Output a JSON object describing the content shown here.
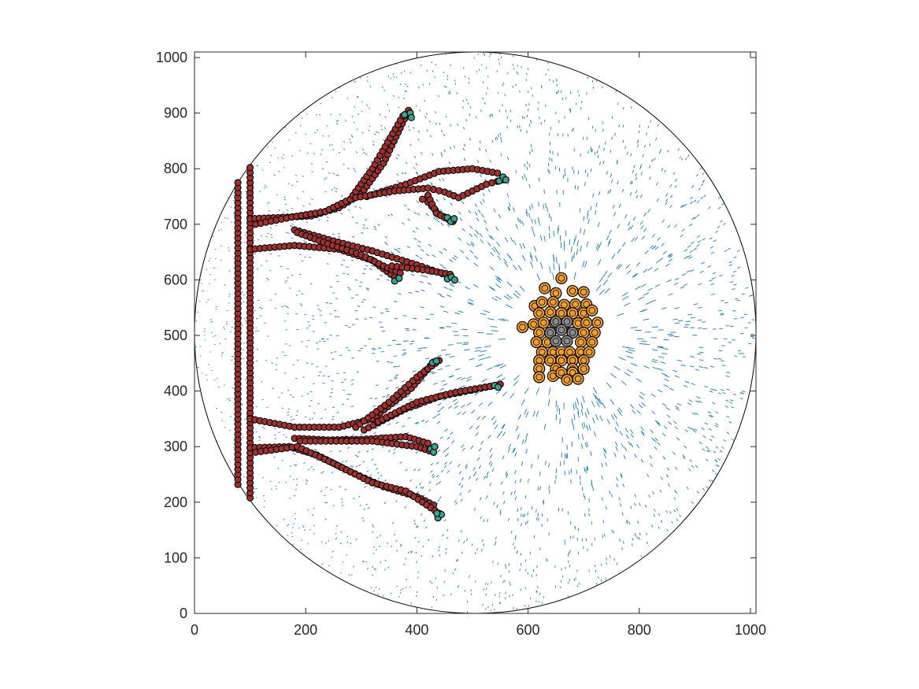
{
  "chart_data": {
    "type": "scatter",
    "title": "",
    "xlabel": "",
    "ylabel": "",
    "xlim": [
      0,
      1010
    ],
    "ylim": [
      0,
      1010
    ],
    "grid": false,
    "legend": "none",
    "x_ticks": [
      "0",
      "200",
      "400",
      "600",
      "800",
      "1000"
    ],
    "y_ticks": [
      "0",
      "100",
      "200",
      "300",
      "400",
      "500",
      "600",
      "700",
      "800",
      "900",
      "1000"
    ],
    "boundary_circle": {
      "center": [
        505,
        505
      ],
      "radius": 505
    },
    "colors": {
      "vessel_cell": "#a0322d",
      "tip_cell": "#3aa58f",
      "tumor_cell": "#f0a030",
      "necrotic_cell": "#8c8c8c",
      "field": "#1f77b4"
    },
    "series": [
      {
        "role": "vessel",
        "polylines": [
          [
            [
              78,
              232
            ],
            [
              78,
              775
            ]
          ],
          [
            [
              100,
              208
            ],
            [
              100,
              802
            ]
          ],
          [
            [
              100,
              710
            ],
            [
              150,
              712
            ],
            [
              210,
              715
            ],
            [
              260,
              730
            ],
            [
              300,
              755
            ],
            [
              340,
              810
            ],
            [
              385,
              905
            ]
          ],
          [
            [
              110,
              700
            ],
            [
              175,
              713
            ],
            [
              235,
              723
            ],
            [
              280,
              745
            ],
            [
              320,
              800
            ],
            [
              375,
              895
            ]
          ],
          [
            [
              310,
              750
            ],
            [
              380,
              772
            ],
            [
              440,
              795
            ],
            [
              500,
              800
            ],
            [
              545,
              792
            ],
            [
              555,
              784
            ]
          ],
          [
            [
              290,
              748
            ],
            [
              360,
              760
            ],
            [
              420,
              765
            ],
            [
              450,
              758
            ],
            [
              475,
              748
            ],
            [
              525,
              772
            ],
            [
              555,
              780
            ]
          ],
          [
            [
              410,
              745
            ],
            [
              420,
              740
            ],
            [
              440,
              718
            ],
            [
              465,
              705
            ]
          ],
          [
            [
              420,
              752
            ],
            [
              435,
              720
            ],
            [
              458,
              708
            ]
          ],
          [
            [
              100,
              655
            ],
            [
              180,
              662
            ],
            [
              260,
              655
            ],
            [
              320,
              635
            ],
            [
              360,
              605
            ]
          ],
          [
            [
              180,
              690
            ],
            [
              250,
              670
            ],
            [
              320,
              652
            ],
            [
              400,
              627
            ],
            [
              455,
              608
            ]
          ],
          [
            [
              185,
              685
            ],
            [
              240,
              665
            ],
            [
              300,
              645
            ],
            [
              340,
              625
            ],
            [
              370,
              612
            ]
          ],
          [
            [
              355,
              625
            ],
            [
              420,
              617
            ],
            [
              460,
              610
            ]
          ],
          [
            [
              100,
              350
            ],
            [
              180,
              335
            ],
            [
              260,
              335
            ],
            [
              320,
              350
            ],
            [
              390,
              405
            ],
            [
              430,
              452
            ]
          ],
          [
            [
              290,
              335
            ],
            [
              350,
              380
            ],
            [
              400,
              425
            ],
            [
              440,
              455
            ]
          ],
          [
            [
              305,
              330
            ],
            [
              380,
              368
            ],
            [
              440,
              390
            ],
            [
              515,
              405
            ],
            [
              550,
              412
            ]
          ],
          [
            [
              330,
              345
            ],
            [
              400,
              380
            ],
            [
              470,
              398
            ],
            [
              540,
              410
            ]
          ],
          [
            [
              180,
              315
            ],
            [
              240,
              312
            ],
            [
              300,
              313
            ],
            [
              380,
              318
            ],
            [
              420,
              306
            ]
          ],
          [
            [
              190,
              310
            ],
            [
              320,
              310
            ],
            [
              400,
              300
            ],
            [
              430,
              290
            ]
          ],
          [
            [
              100,
              298
            ],
            [
              170,
              300
            ],
            [
              220,
              285
            ],
            [
              280,
              255
            ],
            [
              340,
              228
            ],
            [
              400,
              210
            ],
            [
              430,
              195
            ]
          ],
          [
            [
              110,
              290
            ],
            [
              185,
              300
            ],
            [
              250,
              270
            ],
            [
              320,
              235
            ],
            [
              380,
              220
            ],
            [
              440,
              180
            ]
          ]
        ]
      },
      {
        "role": "tip",
        "points": [
          [
            378,
            897
          ],
          [
            388,
            900
          ],
          [
            390,
            892
          ],
          [
            548,
            778
          ],
          [
            555,
            785
          ],
          [
            560,
            780
          ],
          [
            455,
            712
          ],
          [
            461,
            705
          ],
          [
            467,
            710
          ],
          [
            360,
            598
          ],
          [
            368,
            603
          ],
          [
            455,
            602
          ],
          [
            462,
            605
          ],
          [
            468,
            600
          ],
          [
            428,
            451
          ],
          [
            435,
            454
          ],
          [
            540,
            410
          ],
          [
            546,
            407
          ],
          [
            425,
            296
          ],
          [
            430,
            290
          ],
          [
            432,
            300
          ],
          [
            438,
            172
          ],
          [
            444,
            178
          ],
          [
            436,
            180
          ]
        ]
      },
      {
        "role": "tumor",
        "points": [
          [
            660,
            603
          ],
          [
            630,
            585
          ],
          [
            650,
            576
          ],
          [
            680,
            580
          ],
          [
            700,
            578
          ],
          [
            612,
            553
          ],
          [
            625,
            560
          ],
          [
            645,
            560
          ],
          [
            665,
            555
          ],
          [
            685,
            556
          ],
          [
            705,
            556
          ],
          [
            620,
            540
          ],
          [
            640,
            542
          ],
          [
            660,
            540
          ],
          [
            680,
            540
          ],
          [
            700,
            540
          ],
          [
            715,
            545
          ],
          [
            610,
            520
          ],
          [
            628,
            523
          ],
          [
            648,
            523
          ],
          [
            665,
            520
          ],
          [
            690,
            522
          ],
          [
            705,
            523
          ],
          [
            725,
            523
          ],
          [
            590,
            515
          ],
          [
            620,
            505
          ],
          [
            640,
            505
          ],
          [
            700,
            505
          ],
          [
            720,
            505
          ],
          [
            615,
            488
          ],
          [
            635,
            488
          ],
          [
            695,
            488
          ],
          [
            715,
            488
          ],
          [
            625,
            470
          ],
          [
            645,
            470
          ],
          [
            660,
            470
          ],
          [
            675,
            470
          ],
          [
            695,
            470
          ],
          [
            710,
            470
          ],
          [
            620,
            455
          ],
          [
            640,
            455
          ],
          [
            660,
            455
          ],
          [
            680,
            455
          ],
          [
            700,
            455
          ],
          [
            620,
            440
          ],
          [
            650,
            440
          ],
          [
            680,
            440
          ],
          [
            700,
            440
          ],
          [
            620,
            425
          ],
          [
            645,
            427
          ],
          [
            660,
            433
          ],
          [
            680,
            433
          ],
          [
            670,
            420
          ],
          [
            690,
            422
          ]
        ]
      },
      {
        "role": "necrotic",
        "points": [
          [
            650,
            525
          ],
          [
            670,
            525
          ],
          [
            640,
            505
          ],
          [
            660,
            510
          ],
          [
            680,
            505
          ],
          [
            650,
            490
          ],
          [
            670,
            490
          ]
        ]
      }
    ]
  }
}
